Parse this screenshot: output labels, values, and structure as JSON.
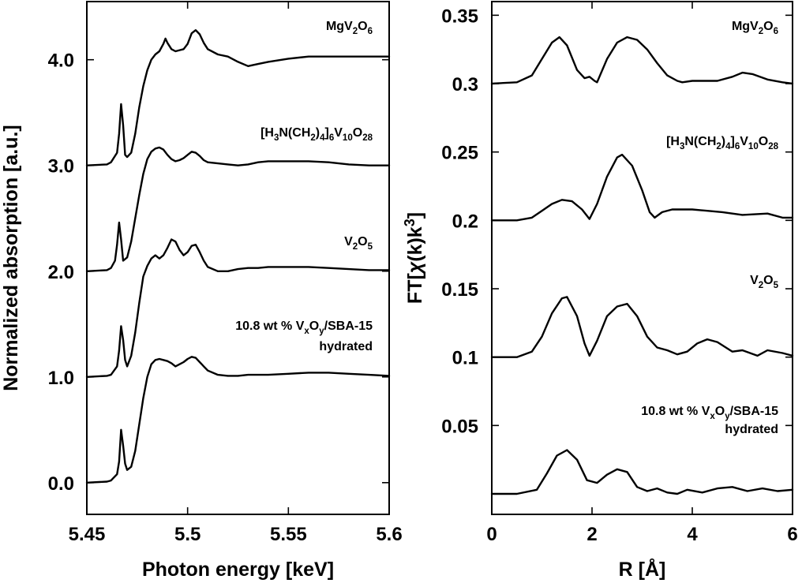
{
  "chart_data": [
    {
      "type": "line",
      "xlabel": "Photon energy [keV]",
      "ylabel": "Normalized absorption [a.u.]",
      "xlim": [
        5.45,
        5.6
      ],
      "ylim": [
        -0.3,
        4.55
      ],
      "xticks": [
        5.45,
        5.5,
        5.55,
        5.6
      ],
      "xtick_labels": [
        "5.45",
        "5.5",
        "5.55",
        "5.6"
      ],
      "yticks": [
        0,
        1,
        2,
        3,
        4
      ],
      "ytick_labels": [
        "0.0",
        "1.0",
        "2.0",
        "3.0",
        "4.0"
      ],
      "grid": false,
      "series": [
        {
          "name": "MgV₂O₆",
          "label_parts": [
            [
              "MgV",
              ""
            ],
            [
              "2",
              "sub"
            ],
            [
              "O",
              ""
            ],
            [
              "6",
              "sub"
            ]
          ],
          "x": [
            5.45,
            5.46,
            5.462,
            5.465,
            5.466,
            5.467,
            5.468,
            5.469,
            5.47,
            5.472,
            5.474,
            5.476,
            5.478,
            5.48,
            5.482,
            5.484,
            5.486,
            5.488,
            5.489,
            5.49,
            5.492,
            5.494,
            5.496,
            5.498,
            5.5,
            5.502,
            5.504,
            5.506,
            5.508,
            5.51,
            5.515,
            5.52,
            5.525,
            5.53,
            5.535,
            5.54,
            5.55,
            5.56,
            5.57,
            5.58,
            5.59,
            5.6
          ],
          "y": [
            3.0,
            3.01,
            3.03,
            3.12,
            3.3,
            3.58,
            3.38,
            3.1,
            3.08,
            3.12,
            3.3,
            3.55,
            3.75,
            3.9,
            4.0,
            4.05,
            4.08,
            4.15,
            4.2,
            4.16,
            4.1,
            4.08,
            4.09,
            4.1,
            4.15,
            4.25,
            4.28,
            4.24,
            4.16,
            4.1,
            4.05,
            4.03,
            3.98,
            3.94,
            3.96,
            3.98,
            4.01,
            4.03,
            4.03,
            4.03,
            4.03,
            4.03
          ]
        },
        {
          "name": "[H₃N(CH₂)₄]₆V₁₀O₂₈",
          "label_parts": [
            [
              "[H",
              ""
            ],
            [
              "3",
              "sub"
            ],
            [
              "N(CH",
              ""
            ],
            [
              "2",
              "sub"
            ],
            [
              ")",
              ""
            ],
            [
              "4",
              "sub"
            ],
            [
              "]",
              ""
            ],
            [
              "6",
              "sub"
            ],
            [
              "V",
              ""
            ],
            [
              "10",
              "sub"
            ],
            [
              "O",
              ""
            ],
            [
              "28",
              "sub"
            ]
          ],
          "x": [
            5.45,
            5.46,
            5.462,
            5.464,
            5.465,
            5.466,
            5.467,
            5.468,
            5.47,
            5.472,
            5.474,
            5.476,
            5.478,
            5.48,
            5.482,
            5.484,
            5.486,
            5.488,
            5.49,
            5.492,
            5.494,
            5.496,
            5.498,
            5.5,
            5.502,
            5.504,
            5.506,
            5.508,
            5.51,
            5.515,
            5.52,
            5.525,
            5.53,
            5.535,
            5.54,
            5.55,
            5.56,
            5.57,
            5.58,
            5.59,
            5.6
          ],
          "y": [
            2.0,
            2.01,
            2.03,
            2.1,
            2.25,
            2.46,
            2.3,
            2.1,
            2.13,
            2.28,
            2.5,
            2.72,
            2.92,
            3.06,
            3.13,
            3.16,
            3.17,
            3.15,
            3.1,
            3.06,
            3.04,
            3.05,
            3.07,
            3.1,
            3.13,
            3.12,
            3.09,
            3.05,
            3.03,
            3.02,
            3.01,
            3.0,
            3.01,
            3.03,
            3.04,
            3.04,
            3.04,
            3.03,
            3.01,
            3.0,
            3.0
          ]
        },
        {
          "name": "V₂O₅",
          "label_parts": [
            [
              "V",
              ""
            ],
            [
              "2",
              "sub"
            ],
            [
              "O",
              ""
            ],
            [
              "5",
              "sub"
            ]
          ],
          "x": [
            5.45,
            5.46,
            5.462,
            5.465,
            5.466,
            5.467,
            5.468,
            5.469,
            5.47,
            5.472,
            5.474,
            5.476,
            5.478,
            5.48,
            5.482,
            5.484,
            5.486,
            5.488,
            5.49,
            5.492,
            5.494,
            5.496,
            5.498,
            5.5,
            5.502,
            5.504,
            5.506,
            5.508,
            5.51,
            5.515,
            5.52,
            5.525,
            5.53,
            5.535,
            5.54,
            5.55,
            5.56,
            5.57,
            5.58,
            5.59,
            5.6
          ],
          "y": [
            1.0,
            1.01,
            1.02,
            1.1,
            1.25,
            1.48,
            1.35,
            1.16,
            1.1,
            1.2,
            1.42,
            1.7,
            1.95,
            2.05,
            2.12,
            2.15,
            2.12,
            2.15,
            2.22,
            2.3,
            2.28,
            2.2,
            2.15,
            2.18,
            2.24,
            2.25,
            2.18,
            2.1,
            2.04,
            2.0,
            2.0,
            2.02,
            2.03,
            2.03,
            2.04,
            2.04,
            2.04,
            2.03,
            2.02,
            2.01,
            2.01
          ]
        },
        {
          "name": "10.8 wt % VₓOᵧ/SBA-15 hydrated",
          "label_parts": [
            [
              "10.8 wt % V",
              ""
            ],
            [
              "x",
              "sub"
            ],
            [
              "O",
              ""
            ],
            [
              "y",
              "sub"
            ],
            [
              "/SBA-15",
              ""
            ]
          ],
          "label_line2": "hydrated",
          "x": [
            5.45,
            5.46,
            5.462,
            5.465,
            5.466,
            5.467,
            5.468,
            5.469,
            5.47,
            5.472,
            5.474,
            5.476,
            5.478,
            5.48,
            5.482,
            5.484,
            5.486,
            5.488,
            5.49,
            5.492,
            5.494,
            5.496,
            5.498,
            5.5,
            5.502,
            5.504,
            5.506,
            5.508,
            5.51,
            5.515,
            5.52,
            5.525,
            5.53,
            5.535,
            5.54,
            5.55,
            5.56,
            5.57,
            5.58,
            5.59,
            5.6
          ],
          "y": [
            0.0,
            0.01,
            0.02,
            0.08,
            0.2,
            0.5,
            0.35,
            0.18,
            0.12,
            0.15,
            0.3,
            0.55,
            0.8,
            1.0,
            1.12,
            1.16,
            1.17,
            1.16,
            1.15,
            1.13,
            1.1,
            1.12,
            1.14,
            1.17,
            1.19,
            1.18,
            1.14,
            1.1,
            1.06,
            1.02,
            1.01,
            1.01,
            1.02,
            1.02,
            1.02,
            1.03,
            1.04,
            1.04,
            1.03,
            1.02,
            1.01
          ]
        }
      ]
    },
    {
      "type": "line",
      "xlabel": "R [Å]",
      "ylabel_parts": [
        [
          "FT[",
          ""
        ],
        [
          "χ",
          "italic"
        ],
        [
          "(k)k",
          ""
        ],
        [
          "3",
          "sup"
        ],
        [
          "]",
          ""
        ]
      ],
      "xlim": [
        0,
        6
      ],
      "ylim": [
        -0.015,
        0.36
      ],
      "xticks": [
        0,
        2,
        4,
        6
      ],
      "xtick_labels": [
        "0",
        "2",
        "4",
        "6"
      ],
      "yticks": [
        0.05,
        0.1,
        0.15,
        0.2,
        0.25,
        0.3,
        0.35
      ],
      "ytick_labels": [
        "0.05",
        "0.1",
        "0.15",
        "0.2",
        "0.25",
        "0.3",
        "0.35"
      ],
      "grid": false,
      "series": [
        {
          "name": "MgV₂O₆",
          "label_parts": [
            [
              "MgV",
              ""
            ],
            [
              "2",
              "sub"
            ],
            [
              "O",
              ""
            ],
            [
              "6",
              "sub"
            ]
          ],
          "x": [
            0,
            0.5,
            0.8,
            1.0,
            1.2,
            1.35,
            1.5,
            1.7,
            1.85,
            1.95,
            2.05,
            2.1,
            2.3,
            2.5,
            2.7,
            2.9,
            3.1,
            3.3,
            3.5,
            3.7,
            3.8,
            4.0,
            4.2,
            4.5,
            4.8,
            5.0,
            5.2,
            5.5,
            5.8,
            6.0
          ],
          "y": [
            0.3,
            0.301,
            0.306,
            0.318,
            0.33,
            0.334,
            0.328,
            0.31,
            0.304,
            0.305,
            0.302,
            0.301,
            0.318,
            0.33,
            0.334,
            0.332,
            0.325,
            0.315,
            0.306,
            0.302,
            0.301,
            0.302,
            0.302,
            0.302,
            0.305,
            0.308,
            0.307,
            0.303,
            0.301,
            0.3
          ]
        },
        {
          "name": "[H₃N(CH₂)₄]₆V₁₀O₂₈",
          "label_parts": [
            [
              "[H",
              ""
            ],
            [
              "3",
              "sub"
            ],
            [
              "N(CH",
              ""
            ],
            [
              "2",
              "sub"
            ],
            [
              ")",
              ""
            ],
            [
              "4",
              "sub"
            ],
            [
              "]",
              ""
            ],
            [
              "6",
              "sub"
            ],
            [
              "V",
              ""
            ],
            [
              "10",
              "sub"
            ],
            [
              "O",
              ""
            ],
            [
              "28",
              "sub"
            ]
          ],
          "x": [
            0,
            0.5,
            0.8,
            1.0,
            1.2,
            1.4,
            1.6,
            1.8,
            1.95,
            2.1,
            2.3,
            2.5,
            2.6,
            2.8,
            3.0,
            3.15,
            3.25,
            3.4,
            3.6,
            4.0,
            4.3,
            4.6,
            5.0,
            5.5,
            5.8,
            6.0
          ],
          "y": [
            0.2,
            0.2,
            0.202,
            0.207,
            0.212,
            0.215,
            0.214,
            0.208,
            0.201,
            0.212,
            0.232,
            0.246,
            0.248,
            0.24,
            0.222,
            0.206,
            0.202,
            0.206,
            0.208,
            0.208,
            0.207,
            0.206,
            0.204,
            0.205,
            0.202,
            0.202
          ]
        },
        {
          "name": "V₂O₅",
          "label_parts": [
            [
              "V",
              ""
            ],
            [
              "2",
              "sub"
            ],
            [
              "O",
              ""
            ],
            [
              "5",
              "sub"
            ]
          ],
          "x": [
            0,
            0.5,
            0.8,
            1.0,
            1.2,
            1.4,
            1.5,
            1.7,
            1.85,
            1.95,
            2.1,
            2.3,
            2.5,
            2.7,
            2.9,
            3.1,
            3.3,
            3.5,
            3.7,
            3.9,
            4.1,
            4.3,
            4.5,
            4.8,
            5.0,
            5.3,
            5.5,
            5.8,
            6.0
          ],
          "y": [
            0.1,
            0.1,
            0.104,
            0.115,
            0.132,
            0.143,
            0.144,
            0.13,
            0.11,
            0.101,
            0.112,
            0.13,
            0.137,
            0.139,
            0.13,
            0.115,
            0.107,
            0.105,
            0.102,
            0.104,
            0.11,
            0.113,
            0.111,
            0.104,
            0.105,
            0.101,
            0.105,
            0.103,
            0.101
          ]
        },
        {
          "name": "10.8 wt % VₓOᵧ/SBA-15 hydrated",
          "label_parts": [
            [
              "10.8 wt % V",
              ""
            ],
            [
              "x",
              "sub"
            ],
            [
              "O",
              ""
            ],
            [
              "y",
              "sub"
            ],
            [
              "/SBA-15",
              ""
            ]
          ],
          "label_line2": "hydrated",
          "x": [
            0,
            0.5,
            0.9,
            1.1,
            1.3,
            1.5,
            1.7,
            1.9,
            2.1,
            2.3,
            2.5,
            2.7,
            2.9,
            3.1,
            3.3,
            3.5,
            3.7,
            3.9,
            4.2,
            4.5,
            4.8,
            5.1,
            5.4,
            5.7,
            6.0
          ],
          "y": [
            0.0,
            0.0,
            0.003,
            0.015,
            0.028,
            0.032,
            0.025,
            0.01,
            0.008,
            0.014,
            0.018,
            0.016,
            0.005,
            0.002,
            0.004,
            0.001,
            0.0,
            0.003,
            0.001,
            0.004,
            0.005,
            0.002,
            0.004,
            0.002,
            0.003
          ]
        }
      ]
    }
  ]
}
